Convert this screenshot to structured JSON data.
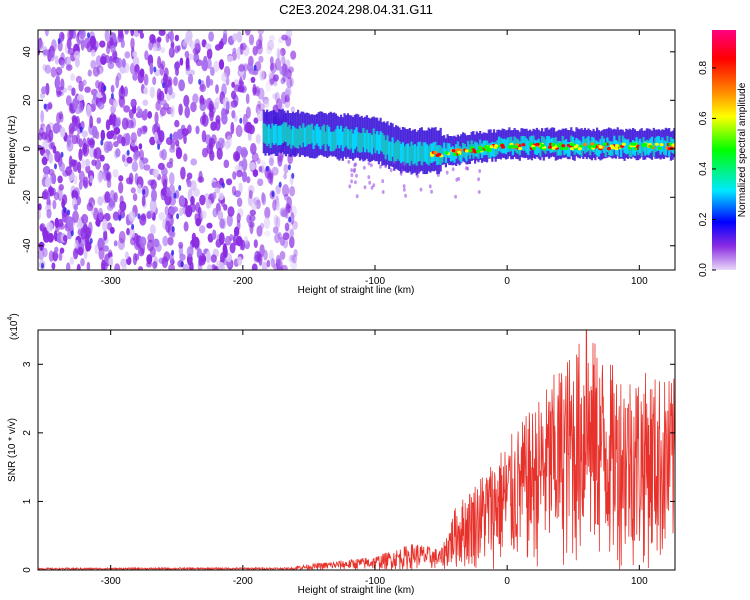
{
  "title": "C2E3.2024.298.04.31.G11",
  "chart_data": [
    {
      "type": "heatmap",
      "xlabel": "Height of straight line (km)",
      "ylabel": "Frequency (Hz)",
      "xlim": [
        -355,
        127
      ],
      "ylim": [
        -50,
        49
      ],
      "xticks": [
        -300,
        -200,
        -100,
        0,
        100
      ],
      "xtick_labels": [
        "-300",
        "-200",
        "-100",
        "0",
        "100"
      ],
      "yticks": [
        -40,
        -20,
        0,
        20,
        40
      ],
      "ytick_labels": [
        "-40",
        "-20",
        "0",
        "20",
        "40"
      ],
      "noise_region_x": [
        -355,
        -160
      ],
      "signal_band_x": [
        -185,
        127
      ],
      "signal_center_hz": [
        {
          "x": -185,
          "y": 6
        },
        {
          "x": -150,
          "y": 5
        },
        {
          "x": -100,
          "y": 3
        },
        {
          "x": -80,
          "y": -2
        },
        {
          "x": -50,
          "y": -2
        },
        {
          "x": 0,
          "y": 1
        },
        {
          "x": 50,
          "y": 1
        },
        {
          "x": 127,
          "y": 1
        }
      ],
      "colorbar": {
        "label": "Normalized spectral amplitude",
        "range": [
          0.0,
          0.95
        ],
        "ticks": [
          0.0,
          0.2,
          0.4,
          0.6,
          0.8
        ],
        "tick_labels": [
          "0.0",
          "0.2",
          "0.4",
          "0.6",
          "0.8"
        ],
        "colors": [
          "#e8d8f8",
          "#8a2be2",
          "#0000ff",
          "#00e8ff",
          "#00ff00",
          "#ffff00",
          "#ff8000",
          "#ff0000",
          "#ff0080"
        ]
      }
    },
    {
      "type": "line",
      "xlabel": "Height of straight line (km)",
      "ylabel": "SNR (10 * v/v)",
      "scale_label": "(x10",
      "scale_exp": "4",
      "scale_close": ")",
      "xlim": [
        -355,
        127
      ],
      "ylim": [
        0,
        3.5
      ],
      "xticks": [
        -300,
        -200,
        -100,
        0,
        100
      ],
      "xtick_labels": [
        "-300",
        "-200",
        "-100",
        "0",
        "100"
      ],
      "yticks": [
        0,
        1,
        2,
        3
      ],
      "ytick_labels": [
        "0",
        "1",
        "2",
        "3"
      ],
      "color": "#e8312a",
      "envelope": [
        {
          "x": -355,
          "max": 0.05
        },
        {
          "x": -160,
          "max": 0.06
        },
        {
          "x": -100,
          "max": 0.2
        },
        {
          "x": -70,
          "max": 0.4
        },
        {
          "x": -50,
          "max": 0.3
        },
        {
          "x": -40,
          "max": 0.9
        },
        {
          "x": -20,
          "max": 1.4
        },
        {
          "x": 0,
          "max": 1.9
        },
        {
          "x": 20,
          "max": 2.4
        },
        {
          "x": 40,
          "max": 3.0
        },
        {
          "x": 60,
          "max": 3.5
        },
        {
          "x": 80,
          "max": 3.0
        },
        {
          "x": 127,
          "max": 2.8
        }
      ],
      "peak": {
        "x": 60,
        "y": 3.5
      }
    }
  ]
}
